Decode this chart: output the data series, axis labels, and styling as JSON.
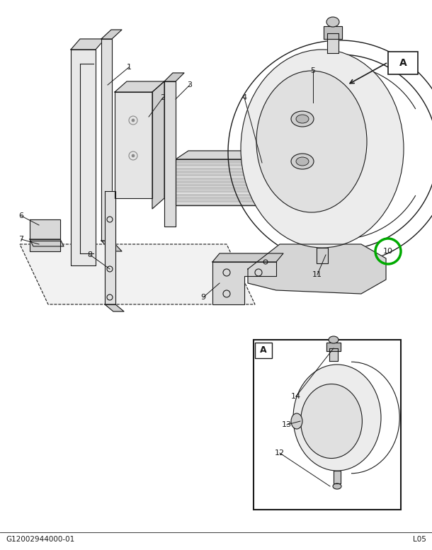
{
  "bg_color": "#ffffff",
  "line_color": "#1a1a1a",
  "green_circle_color": "#00aa00",
  "fig_width": 6.1,
  "fig_height": 7.77,
  "dpi": 100,
  "bottom_left_text": "G12002944000-01",
  "bottom_right_text": "L05"
}
